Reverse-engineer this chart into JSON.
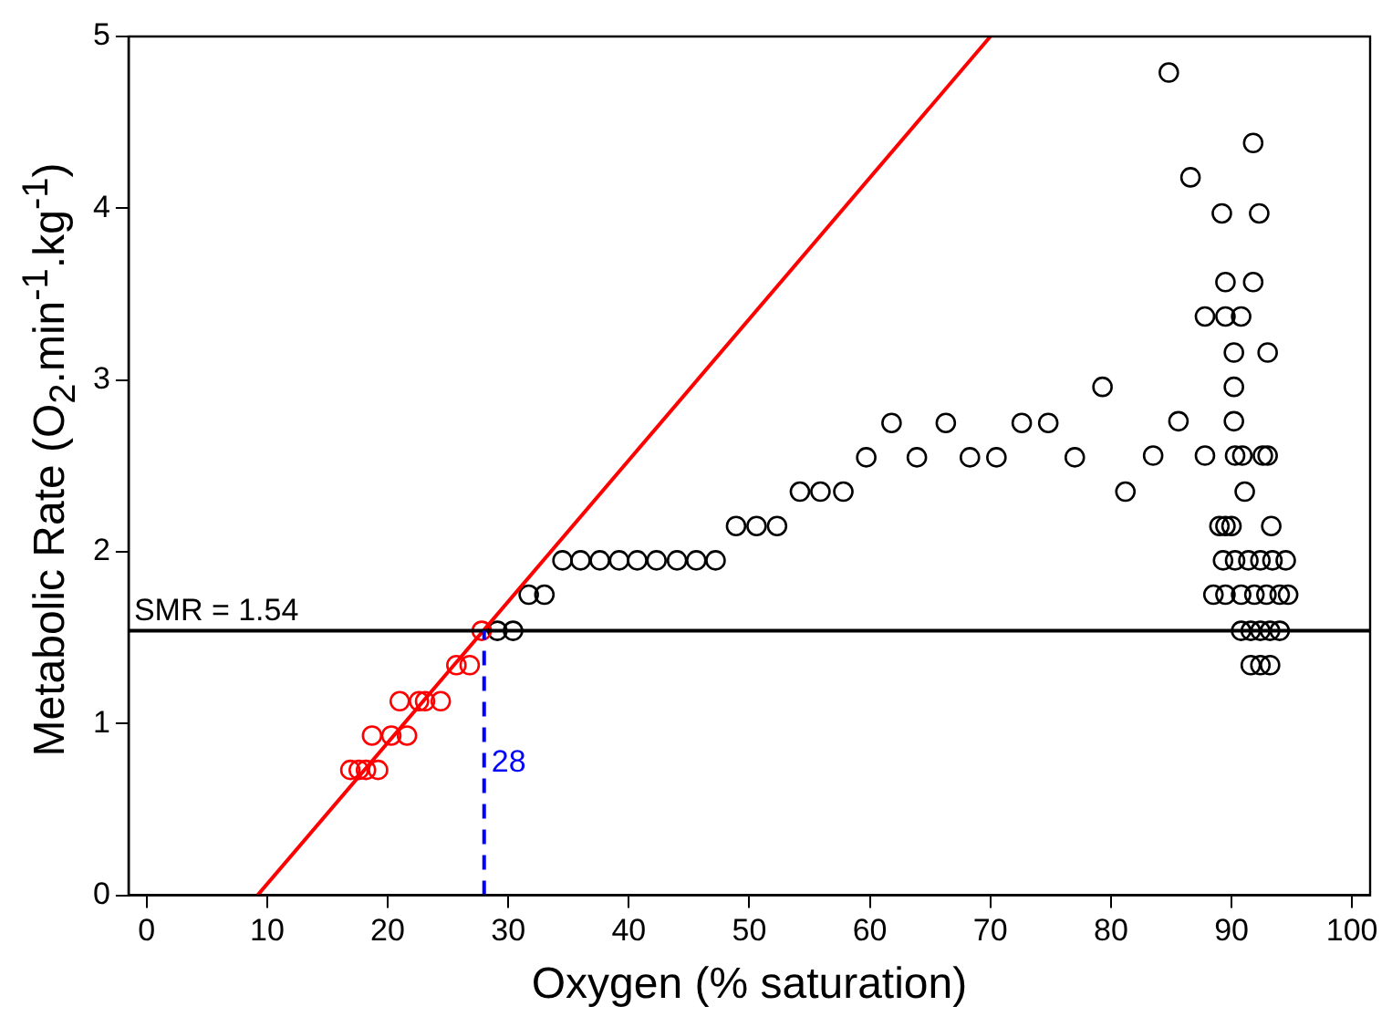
{
  "chart_data": {
    "type": "scatter",
    "xlabel": "Oxygen (% saturation)",
    "ylabel": "Metabolic Rate (O$_{2}$.min$^{-1}$.kg$^{-1}$)",
    "xlim": [
      -1.5,
      101.5
    ],
    "ylim": [
      0,
      5
    ],
    "xticks": [
      0,
      10,
      20,
      30,
      40,
      50,
      60,
      70,
      80,
      90,
      100
    ],
    "yticks": [
      0,
      1,
      2,
      3,
      4,
      5
    ],
    "grid": false,
    "legend": false,
    "marker": "circle",
    "series": [
      {
        "type": "line",
        "color": "#ff0000",
        "x": [
          9.2,
          70.0
        ],
        "values": [
          0,
          5
        ],
        "marker": "none",
        "line_style": "solid"
      },
      {
        "color": "#ff0000",
        "x": [
          16.9,
          17.6,
          18.2,
          19.2,
          18.7,
          20.3,
          21.6,
          21.0,
          22.6,
          23.1,
          24.4,
          25.7,
          26.8,
          27.8
        ],
        "values": [
          0.73,
          0.73,
          0.73,
          0.73,
          0.93,
          0.93,
          0.93,
          1.13,
          1.13,
          1.13,
          1.13,
          1.34,
          1.34,
          1.54
        ]
      },
      {
        "color": "#000000",
        "x": [
          29.1,
          30.4,
          31.7,
          33.0,
          34.5,
          36.0,
          37.6,
          39.2,
          40.7,
          42.3,
          44.0,
          45.6,
          47.2,
          48.9,
          50.6,
          52.3,
          54.2,
          55.9,
          57.8,
          59.7,
          63.9,
          68.3,
          70.5,
          77.0,
          61.8,
          66.3,
          72.6,
          74.8,
          79.3,
          84.8,
          91.8,
          86.6,
          89.2,
          92.3,
          89.5,
          91.8,
          87.8,
          89.5,
          90.8,
          90.2,
          93.0,
          90.2,
          85.6,
          90.2,
          83.5,
          87.8,
          90.3,
          90.9,
          92.6,
          93.0,
          81.2,
          91.1,
          89.0,
          89.5,
          90.0,
          93.3,
          89.3,
          90.3,
          91.4,
          92.4,
          93.4,
          94.5,
          88.5,
          89.5,
          90.8,
          91.9,
          92.9,
          94.0,
          94.7,
          90.8,
          91.6,
          92.4,
          93.2,
          94.0,
          91.6,
          92.4,
          93.2
        ],
        "values": [
          1.54,
          1.54,
          1.75,
          1.75,
          1.95,
          1.95,
          1.95,
          1.95,
          1.95,
          1.95,
          1.95,
          1.95,
          1.95,
          2.15,
          2.15,
          2.15,
          2.35,
          2.35,
          2.35,
          2.55,
          2.55,
          2.55,
          2.55,
          2.55,
          2.75,
          2.75,
          2.75,
          2.75,
          2.96,
          4.79,
          4.38,
          4.18,
          3.97,
          3.97,
          3.57,
          3.57,
          3.37,
          3.37,
          3.37,
          3.16,
          3.16,
          2.96,
          2.76,
          2.76,
          2.56,
          2.56,
          2.56,
          2.56,
          2.56,
          2.56,
          2.35,
          2.35,
          2.15,
          2.15,
          2.15,
          2.15,
          1.95,
          1.95,
          1.95,
          1.95,
          1.95,
          1.95,
          1.75,
          1.75,
          1.75,
          1.75,
          1.75,
          1.75,
          1.75,
          1.54,
          1.54,
          1.54,
          1.54,
          1.54,
          1.34,
          1.34,
          1.34
        ]
      }
    ],
    "ref_lines": [
      {
        "axis": "y",
        "value": 1.54,
        "label": "SMR = 1.54",
        "color": "#000000",
        "line_style": "solid"
      },
      {
        "axis": "x",
        "value": 28,
        "label": "28",
        "color": "#0000ff",
        "line_style": "dashed"
      }
    ]
  }
}
